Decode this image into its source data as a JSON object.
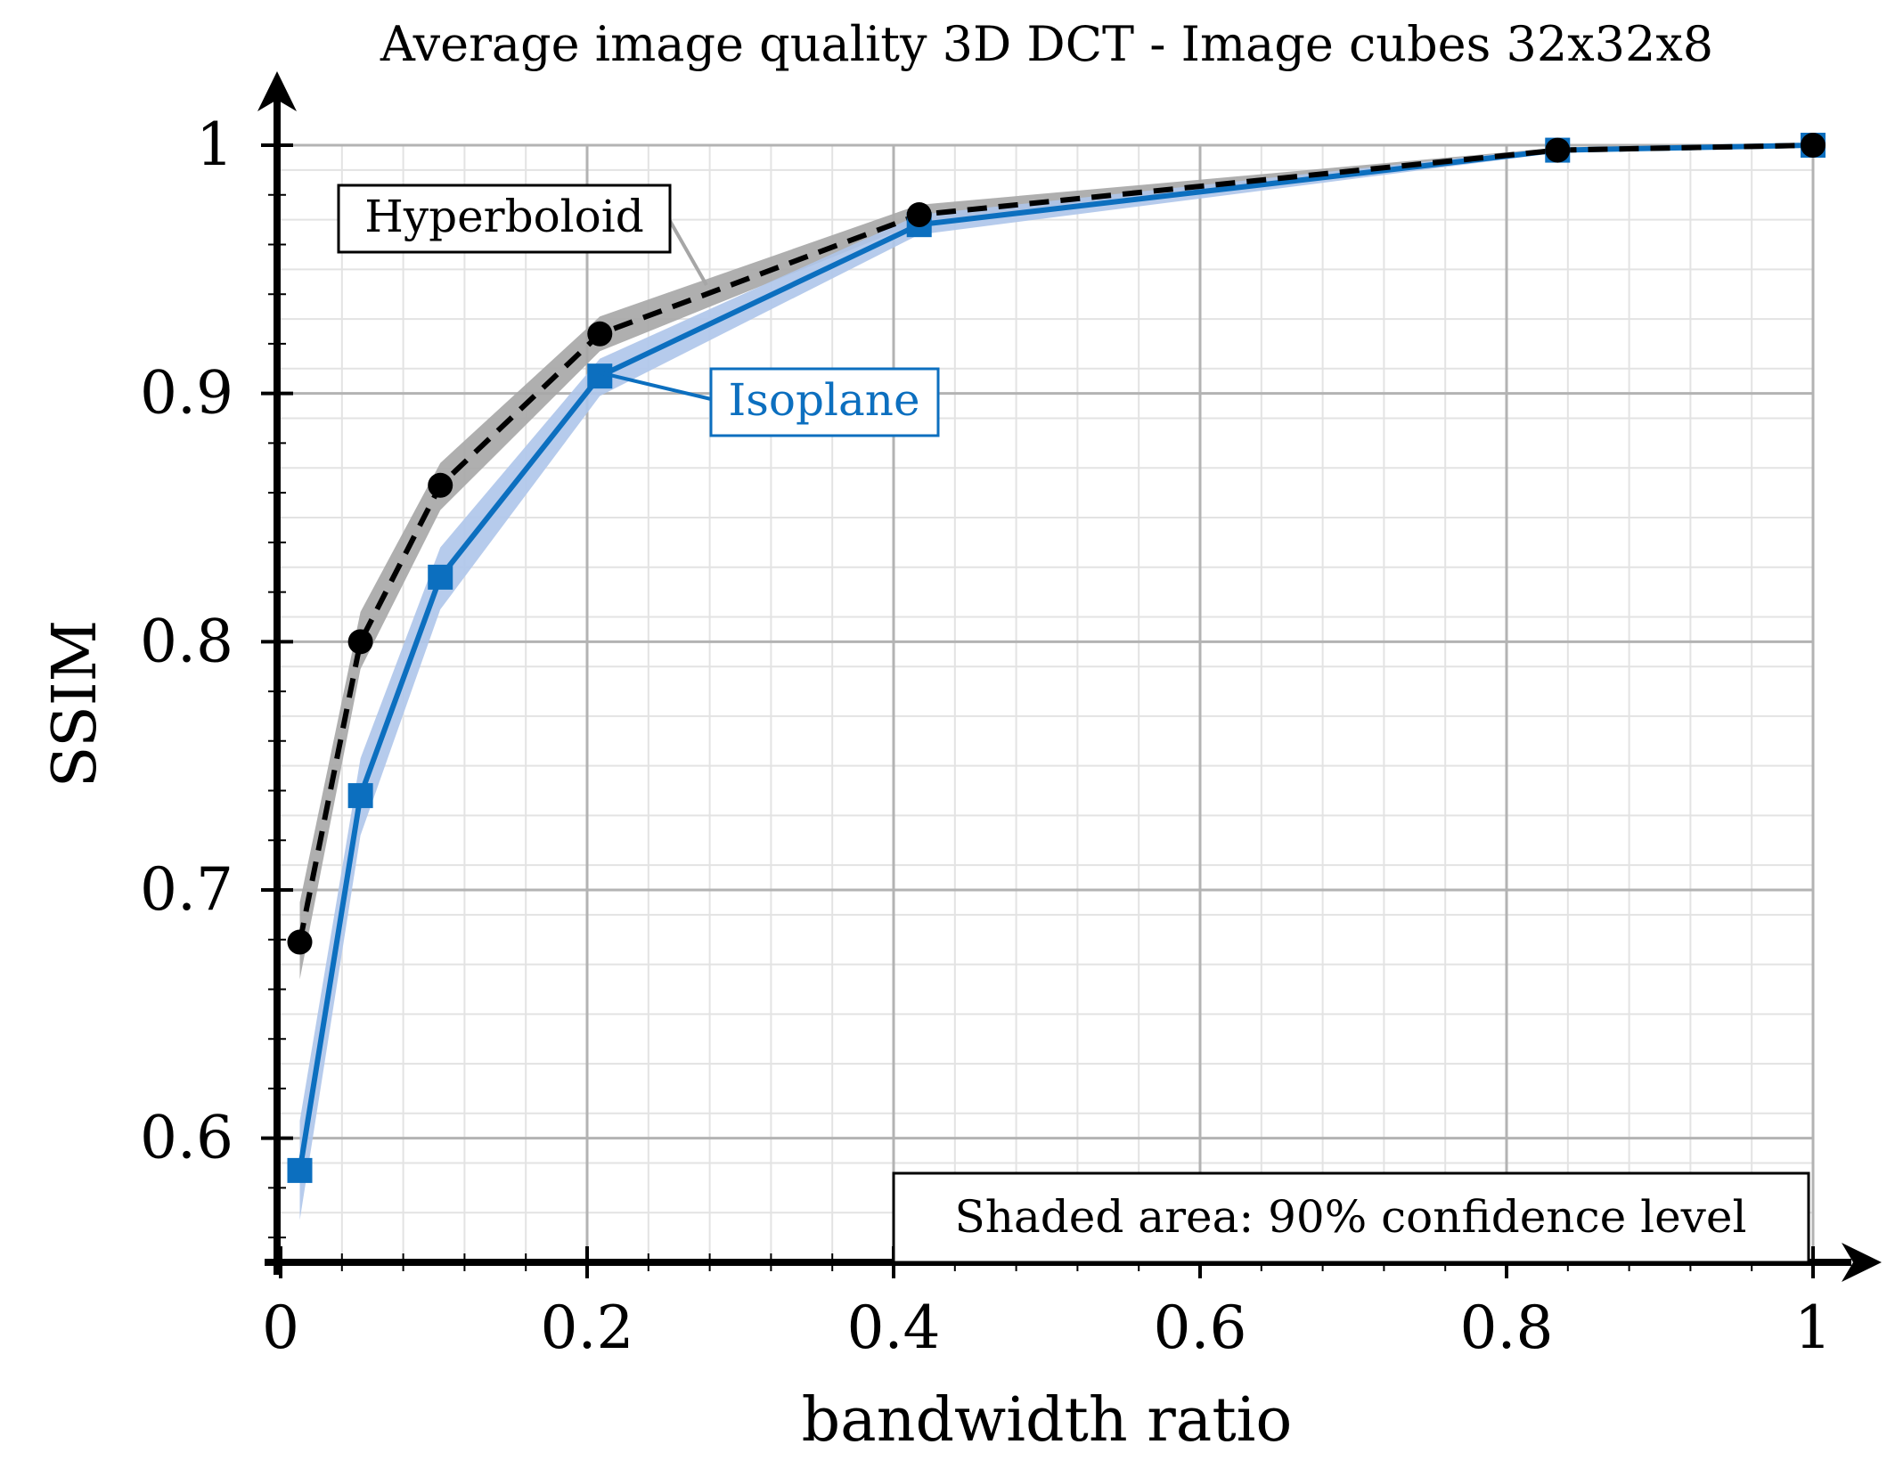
{
  "chart_data": {
    "type": "line",
    "title": "Average image quality 3D DCT - Image cubes 32x32x8",
    "xlabel": "bandwidth ratio",
    "ylabel": "SSIM",
    "xlim": [
      0,
      1
    ],
    "ylim": [
      0.55,
      1
    ],
    "xticks": [
      0,
      0.2,
      0.4,
      0.6,
      0.8,
      1
    ],
    "xtick_labels": [
      "0",
      "0.2",
      "0.4",
      "0.6",
      "0.8",
      "1"
    ],
    "yticks": [
      0.6,
      0.7,
      0.8,
      0.9,
      1
    ],
    "ytick_labels": [
      "0.6",
      "0.7",
      "0.8",
      "0.9",
      "1"
    ],
    "grid": true,
    "series": [
      {
        "name": "Hyperboloid",
        "color": "#000000",
        "band_color": "#a6a6a6",
        "line_style": "dashed",
        "marker": "circle",
        "x": [
          0.0125,
          0.0521,
          0.1042,
          0.2083,
          0.4167,
          0.8333,
          1.0
        ],
        "y": [
          0.679,
          0.8,
          0.863,
          0.924,
          0.972,
          0.998,
          1.0
        ],
        "lower": [
          0.664,
          0.789,
          0.853,
          0.917,
          0.969,
          0.997,
          1.0
        ],
        "upper": [
          0.695,
          0.812,
          0.872,
          0.931,
          0.976,
          0.999,
          1.0
        ]
      },
      {
        "name": "Isoplane",
        "color": "#0c6fbf",
        "band_color": "#aec5ea",
        "line_style": "solid",
        "marker": "square",
        "x": [
          0.0125,
          0.0521,
          0.1042,
          0.2083,
          0.4167,
          0.8333,
          1.0
        ],
        "y": [
          0.587,
          0.738,
          0.826,
          0.907,
          0.968,
          0.998,
          1.0
        ],
        "lower": [
          0.567,
          0.722,
          0.813,
          0.899,
          0.964,
          0.997,
          1.0
        ],
        "upper": [
          0.607,
          0.753,
          0.838,
          0.914,
          0.972,
          0.999,
          1.0
        ]
      }
    ],
    "annotations": {
      "note": "Shaded area: 90% confidence level"
    }
  }
}
